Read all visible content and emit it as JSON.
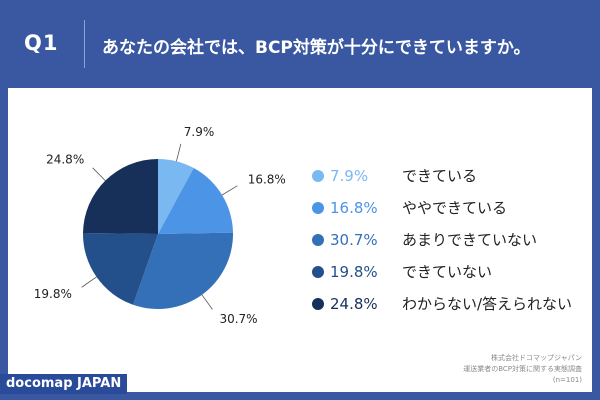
{
  "header": {
    "q_label": "Q1",
    "question": "あなたの会社では、BCP対策が十分にできていますか。"
  },
  "chart_data": {
    "type": "pie",
    "categories": [
      "できている",
      "ややできている",
      "あまりできていない",
      "できていない",
      "わからない/答えられない"
    ],
    "values": [
      7.9,
      16.8,
      30.7,
      19.8,
      24.8
    ],
    "value_labels": [
      "7.9%",
      "16.8%",
      "30.7%",
      "19.8%",
      "24.8%"
    ],
    "colors": [
      "#7ab8f2",
      "#4b94e6",
      "#3470b8",
      "#234f8a",
      "#16305a"
    ],
    "legend_placement": "right"
  },
  "source": {
    "line1": "株式会社ドコマップジャパン",
    "line2": "運送業者のBCP対策に関する実態調査",
    "line3": "(n=101)"
  },
  "brand": "docomap JAPAN"
}
